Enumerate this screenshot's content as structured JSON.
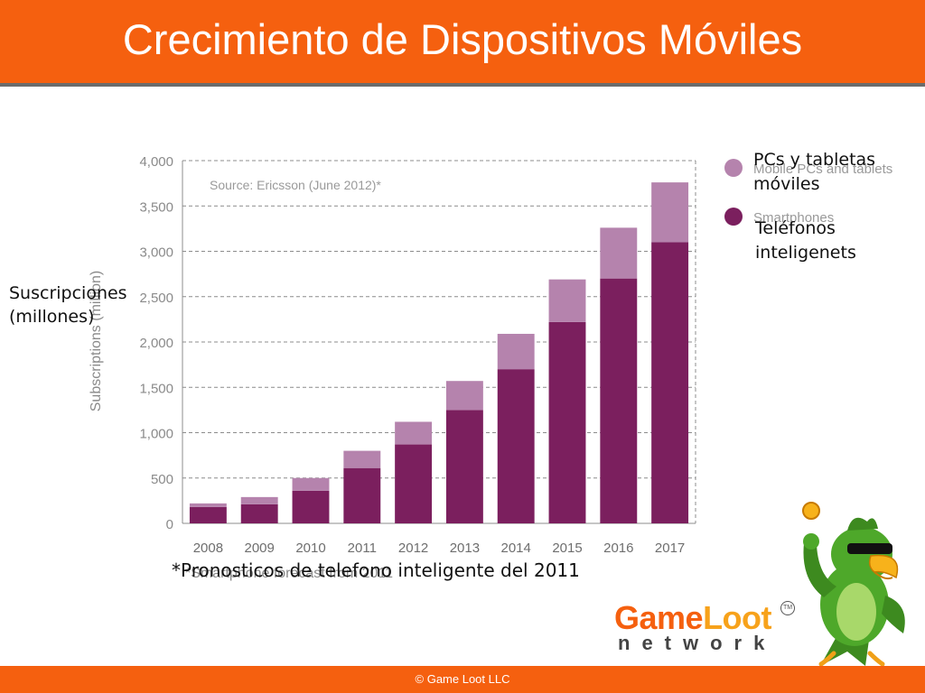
{
  "slide": {
    "title": "Crecimiento de Dispositivos Móviles",
    "footer": "© Game Loot LLC"
  },
  "annotations": {
    "ylabel_es": [
      "Suscripciones",
      "(millones)"
    ],
    "legend_es": [
      [
        "PCs y tabletas",
        "móviles"
      ],
      [
        "Teléfonos",
        "inteligenets"
      ]
    ],
    "note_es": "*Pronosticos de telefono inteligente del 2011"
  },
  "logo": {
    "word1": "Game",
    "word2": "Loot",
    "sub": "network",
    "tm": "TM"
  },
  "chart_data": {
    "type": "bar",
    "stacked": true,
    "categories": [
      "2008",
      "2009",
      "2010",
      "2011",
      "2012",
      "2013",
      "2014",
      "2015",
      "2016",
      "2017"
    ],
    "series": [
      {
        "name": "Smartphones",
        "color": "#7b1f5e",
        "values": [
          180,
          210,
          360,
          610,
          870,
          1250,
          1700,
          2220,
          2700,
          3100
        ]
      },
      {
        "name": "Mobile PCs and tablets",
        "color": "#b583ad",
        "values": [
          40,
          80,
          140,
          190,
          250,
          320,
          390,
          470,
          560,
          660
        ]
      }
    ],
    "ylabel": "Subscriptions (million)",
    "source_note": "Source: Ericsson (June 2012)*",
    "footnote": "*Smartphone forecast from 2011",
    "yticks": [
      "0",
      "500",
      "1,000",
      "1,500",
      "2,000",
      "2,500",
      "3,000",
      "3,500",
      "4,000"
    ],
    "ylim": [
      0,
      4000
    ],
    "grid": true,
    "legend_position": "right"
  }
}
